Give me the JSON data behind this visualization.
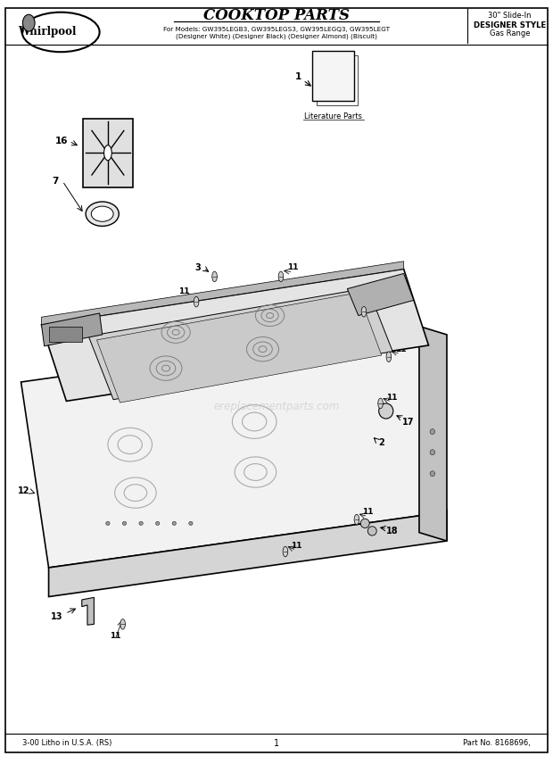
{
  "title": "COOKTOP PARTS",
  "subtitle_line1": "For Models: GW395LEGB3, GW395LEGS3, GW395LEGQ3, GW395LEGT",
  "subtitle_line2": "(Designer White) (Designer Black) (Designer Almond) (Biscuit)",
  "right_header_line1": "30\" Slide-In",
  "right_header_line2": "DESIGNER STYLE",
  "right_header_line3": "Gas Range",
  "footer_left": "3-00 Litho in U.S.A. (RS)",
  "footer_center": "1",
  "footer_right": "Part No. 8168696,",
  "literature_parts_label": "Literature Parts",
  "bg_color": "#ffffff",
  "line_color": "#000000"
}
